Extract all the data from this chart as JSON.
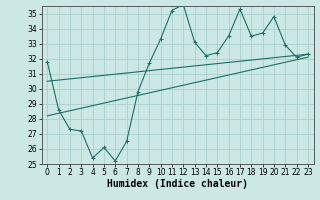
{
  "background_color": "#cce8e5",
  "grid_color": "#aacfcc",
  "line_color": "#1a6e64",
  "xlabel": "Humidex (Indice chaleur)",
  "xlabel_fontsize": 7,
  "ylim": [
    25,
    35.5
  ],
  "xlim": [
    -0.5,
    23.5
  ],
  "yticks": [
    25,
    26,
    27,
    28,
    29,
    30,
    31,
    32,
    33,
    34,
    35
  ],
  "xticks": [
    0,
    1,
    2,
    3,
    4,
    5,
    6,
    7,
    8,
    9,
    10,
    11,
    12,
    13,
    14,
    15,
    16,
    17,
    18,
    19,
    20,
    21,
    22,
    23
  ],
  "series1_x": [
    0,
    1,
    2,
    3,
    4,
    5,
    6,
    7,
    8,
    9,
    10,
    11,
    12,
    13,
    14,
    15,
    16,
    17,
    18,
    19,
    20,
    21,
    22,
    23
  ],
  "series1_y": [
    31.8,
    28.6,
    27.3,
    27.2,
    25.4,
    26.1,
    25.2,
    26.5,
    29.8,
    31.7,
    33.3,
    35.2,
    35.6,
    33.1,
    32.2,
    32.4,
    33.5,
    35.3,
    33.5,
    33.7,
    34.8,
    32.9,
    32.1,
    32.3
  ],
  "series2_x": [
    0,
    23
  ],
  "series2_y": [
    28.2,
    32.1
  ],
  "series3_x": [
    0,
    23
  ],
  "series3_y": [
    30.5,
    32.3
  ],
  "tick_fontsize": 5.5,
  "marker_size": 2.5,
  "line_width": 0.8
}
